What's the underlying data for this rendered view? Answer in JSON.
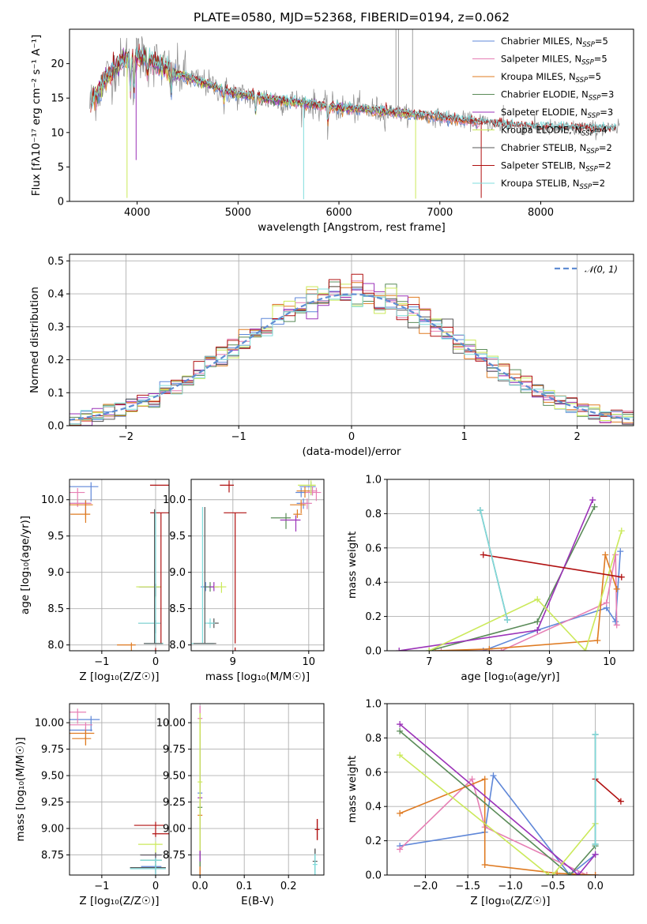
{
  "colors": {
    "Chabrier MILES": "#5f87d8",
    "Salpeter MILES": "#e67fb4",
    "Kroupa MILES": "#df7b22",
    "Chabrier ELODIE": "#5a8b58",
    "Salpeter ELODIE": "#9b32b8",
    "Kroupa ELODIE": "#cbe95a",
    "Chabrier STELIB": "#575757",
    "Salpeter STELIB": "#b01010",
    "Kroupa STELIB": "#7fdcdc",
    "Gaussian": "#5f8dd3"
  },
  "chart_data": [
    {
      "type": "line",
      "title": "PLATE=0580, MJD=52368, FIBERID=0194, z=0.062",
      "xlabel": "wavelength [Angstrom, rest frame]",
      "ylabel": "Flux [fλ10⁻¹⁷ erg cm⁻² s⁻¹ A⁻¹]",
      "xlim": [
        3330,
        8920
      ],
      "ylim": [
        0,
        25
      ],
      "xticks": [
        4000,
        5000,
        6000,
        7000,
        8000
      ],
      "yticks": [
        0,
        5,
        10,
        15,
        20
      ],
      "grid": false,
      "legend_position": "top-right",
      "legend": [
        {
          "series": "Chabrier MILES",
          "text": "Chabrier MILES, N",
          "sub": "SSP",
          "tail": "=5"
        },
        {
          "series": "Salpeter MILES",
          "text": "Salpeter MILES, N",
          "sub": "SSP",
          "tail": "=5"
        },
        {
          "series": "Kroupa MILES",
          "text": "Kroupa MILES, N",
          "sub": "SSP",
          "tail": "=5"
        },
        {
          "series": "Chabrier ELODIE",
          "text": "Chabrier ELODIE, N",
          "sub": "SSP",
          "tail": "=3"
        },
        {
          "series": "Salpeter ELODIE",
          "text": "Salpeter ELODIE, N",
          "sub": "SSP",
          "tail": "=3"
        },
        {
          "series": "Kroupa ELODIE",
          "text": "Kroupa ELODIE, N",
          "sub": "SSP",
          "tail": "=4"
        },
        {
          "series": "Chabrier STELIB",
          "text": "Chabrier STELIB, N",
          "sub": "SSP",
          "tail": "=2"
        },
        {
          "series": "Salpeter STELIB",
          "text": "Salpeter STELIB, N",
          "sub": "SSP",
          "tail": "=2"
        },
        {
          "series": "Kroupa STELIB",
          "text": "Kroupa STELIB, N",
          "sub": "SSP",
          "tail": "=2"
        }
      ],
      "continuum_anchors": [
        [
          3530,
          14
        ],
        [
          3700,
          18
        ],
        [
          3900,
          21
        ],
        [
          4100,
          21
        ],
        [
          4300,
          19
        ],
        [
          4600,
          17.5
        ],
        [
          5000,
          15.5
        ],
        [
          5500,
          14.5
        ],
        [
          6000,
          13.6
        ],
        [
          6500,
          13
        ],
        [
          7000,
          12.2
        ],
        [
          7500,
          11.3
        ],
        [
          8000,
          10.7
        ],
        [
          8500,
          10.5
        ],
        [
          8800,
          10.5
        ]
      ],
      "absorption_lines": [
        [
          3934,
          6
        ],
        [
          3968,
          6
        ],
        [
          4102,
          3
        ],
        [
          4340,
          3
        ],
        [
          4861,
          2
        ],
        [
          5175,
          3
        ],
        [
          5890,
          3
        ]
      ],
      "spike_features": [
        [
          3900,
          0.5,
          "Kroupa ELODIE"
        ],
        [
          3990,
          6,
          "Salpeter ELODIE"
        ],
        [
          5650,
          0.3,
          "Kroupa STELIB"
        ],
        [
          6760,
          0.4,
          "Kroupa ELODIE"
        ],
        [
          7410,
          0.5,
          "Salpeter STELIB"
        ],
        [
          6565,
          25,
          "data"
        ],
        [
          6590,
          25,
          "data"
        ],
        [
          6730,
          25,
          "data"
        ],
        [
          7630,
          14,
          "data"
        ]
      ]
    },
    {
      "type": "line",
      "xlabel": "(data-model)/error",
      "ylabel": "Normed distribution",
      "xlim": [
        -2.5,
        2.5
      ],
      "ylim": [
        0,
        0.52
      ],
      "xticks": [
        -2,
        -1,
        0,
        1,
        2
      ],
      "yticks": [
        0.0,
        0.1,
        0.2,
        0.3,
        0.4,
        0.5
      ],
      "grid": true,
      "legend_position": "top-right",
      "legend": [
        {
          "series": "Gaussian",
          "text": "𝒩(0, 1)"
        }
      ],
      "bin_width": 0.1,
      "series": [
        "Chabrier MILES",
        "Salpeter MILES",
        "Kroupa MILES",
        "Chabrier ELODIE",
        "Salpeter ELODIE",
        "Kroupa ELODIE",
        "Chabrier STELIB",
        "Salpeter STELIB",
        "Kroupa STELIB"
      ],
      "reference_curve": {
        "name": "Gaussian",
        "mean": 0,
        "sigma": 1
      }
    },
    {
      "type": "scatter",
      "xlabel": "Z [log₁₀(Z/Z☉)]",
      "ylabel": "age  [log₁₀(age/yr)]",
      "xlim": [
        -1.6,
        0.25
      ],
      "ylim": [
        7.92,
        10.28
      ],
      "xticks": [
        -1,
        0
      ],
      "yticks": [
        8.0,
        8.5,
        9.0,
        9.5,
        10.0
      ],
      "grid": true
    },
    {
      "type": "scatter",
      "xlabel": "mass [log₁₀(M/M☉)]",
      "xlim": [
        8.45,
        10.2
      ],
      "ylim": [
        7.92,
        10.28
      ],
      "xticks": [
        9,
        10
      ],
      "yticks": [
        8.0,
        8.5,
        9.0,
        9.5,
        10.0
      ],
      "grid": true
    },
    {
      "type": "line",
      "xlabel": "age  [log₁₀(age/yr)]",
      "ylabel": "mass weight",
      "xlim": [
        6.3,
        10.4
      ],
      "ylim": [
        0,
        1.0
      ],
      "xticks": [
        7,
        8,
        9,
        10
      ],
      "yticks": [
        0.0,
        0.2,
        0.4,
        0.6,
        0.8,
        1.0
      ],
      "grid": true
    },
    {
      "type": "scatter",
      "xlabel": "Z [log₁₀(Z/Z☉)]",
      "ylabel": "mass [log₁₀(M/M☉)]",
      "xlim": [
        -1.6,
        0.25
      ],
      "ylim": [
        8.56,
        10.18
      ],
      "xticks": [
        -1,
        0
      ],
      "yticks": [
        8.75,
        9.0,
        9.25,
        9.5,
        9.75,
        10.0
      ],
      "grid": true
    },
    {
      "type": "scatter",
      "xlabel": "E(B-V)",
      "xlim": [
        -0.02,
        0.28
      ],
      "ylim": [
        8.56,
        10.18
      ],
      "xticks": [
        0.0,
        0.1,
        0.2
      ],
      "yticks": [
        8.75,
        9.0,
        9.25,
        9.5,
        9.75,
        10.0
      ],
      "grid": true
    },
    {
      "type": "line",
      "xlabel": "Z [log₁₀(Z/Z☉)]",
      "ylabel": "mass weight",
      "xlim": [
        -2.45,
        0.45
      ],
      "ylim": [
        0,
        1.0
      ],
      "xticks": [
        -2.0,
        -1.5,
        -1.0,
        -0.5,
        0.0
      ],
      "yticks": [
        0.0,
        0.2,
        0.4,
        0.6,
        0.8,
        1.0
      ],
      "grid": true
    }
  ],
  "ssp_fits": [
    {
      "name": "Chabrier MILES",
      "ebv": 0.0,
      "components": [
        {
          "age": 10.18,
          "Z": -1.2,
          "mass": 10.03,
          "w": 0.58
        },
        {
          "age": 9.95,
          "Z": -1.3,
          "mass": 9.93,
          "w": 0.25
        },
        {
          "age": 8.8,
          "Z": 0.0,
          "mass": 8.64,
          "w": 0.12
        },
        {
          "age": 10.1,
          "Z": -2.3,
          "mass": 9.9,
          "w": 0.17
        },
        {
          "age": 7.9,
          "Z": -0.3,
          "mass": 8.2,
          "w": 0.0
        }
      ]
    },
    {
      "name": "Salpeter MILES",
      "ebv": 0.0,
      "components": [
        {
          "age": 10.1,
          "Z": -1.45,
          "mass": 10.1,
          "w": 0.56
        },
        {
          "age": 9.95,
          "Z": -1.3,
          "mass": 9.98,
          "w": 0.28
        },
        {
          "age": 10.12,
          "Z": -2.3,
          "mass": 10.05,
          "w": 0.15
        },
        {
          "age": 8.2,
          "Z": -0.1,
          "mass": 8.3,
          "w": 0.0
        },
        {
          "age": 7.2,
          "Z": 0.0,
          "mass": 8.1,
          "w": 0.0
        }
      ]
    },
    {
      "name": "Kroupa MILES",
      "ebv": 0.0,
      "components": [
        {
          "age": 9.93,
          "Z": -1.3,
          "mass": 9.9,
          "w": 0.56
        },
        {
          "age": 10.12,
          "Z": -2.3,
          "mass": 9.95,
          "w": 0.36
        },
        {
          "age": 9.8,
          "Z": -1.3,
          "mass": 9.85,
          "w": 0.06
        },
        {
          "age": 8.0,
          "Z": -0.45,
          "mass": 8.3,
          "w": 0.01
        },
        {
          "age": 7.1,
          "Z": 0.0,
          "mass": 8.1,
          "w": 0.0
        }
      ]
    },
    {
      "name": "Chabrier ELODIE",
      "ebv": 0.0,
      "components": [
        {
          "age": 9.75,
          "Z": -2.3,
          "mass": 9.7,
          "w": 0.84
        },
        {
          "age": 8.8,
          "Z": 0.0,
          "mass": 8.7,
          "w": 0.17
        },
        {
          "age": 7.0,
          "Z": -0.3,
          "mass": 8.1,
          "w": 0.0
        }
      ]
    },
    {
      "name": "Salpeter ELODIE",
      "ebv": 0.0,
      "components": [
        {
          "age": 9.72,
          "Z": -2.3,
          "mass": 9.83,
          "w": 0.88
        },
        {
          "age": 8.8,
          "Z": 0.0,
          "mass": 8.75,
          "w": 0.12
        },
        {
          "age": 6.5,
          "Z": -0.2,
          "mass": 8.0,
          "w": 0.0
        }
      ]
    },
    {
      "name": "Kroupa ELODIE",
      "ebv": 0.0,
      "components": [
        {
          "age": 10.2,
          "Z": -2.3,
          "mass": 10.03,
          "w": 0.7
        },
        {
          "age": 8.8,
          "Z": 0.0,
          "mass": 8.85,
          "w": 0.3
        },
        {
          "age": 7.0,
          "Z": -0.5,
          "mass": 8.1,
          "w": 0.0
        },
        {
          "age": 9.6,
          "Z": -0.55,
          "mass": 9.58,
          "w": 0.0
        }
      ]
    },
    {
      "name": "Chabrier STELIB",
      "ebv": 0.26,
      "components": [
        {
          "age": 7.85,
          "Z": 0.0,
          "mass": 8.63,
          "w": 0.82
        },
        {
          "age": 8.3,
          "Z": 0.0,
          "mass": 8.75,
          "w": 0.18
        }
      ]
    },
    {
      "name": "Salpeter STELIB",
      "ebv": 0.265,
      "components": [
        {
          "age": 7.9,
          "Z": 0.0,
          "mass": 9.03,
          "w": 0.56
        },
        {
          "age": 10.2,
          "Z": 0.3,
          "mass": 8.95,
          "w": 0.43
        }
      ]
    },
    {
      "name": "Kroupa STELIB",
      "ebv": 0.26,
      "components": [
        {
          "age": 7.85,
          "Z": 0.0,
          "mass": 8.62,
          "w": 0.82
        },
        {
          "age": 8.3,
          "Z": 0.0,
          "mass": 8.7,
          "w": 0.18
        }
      ]
    }
  ]
}
